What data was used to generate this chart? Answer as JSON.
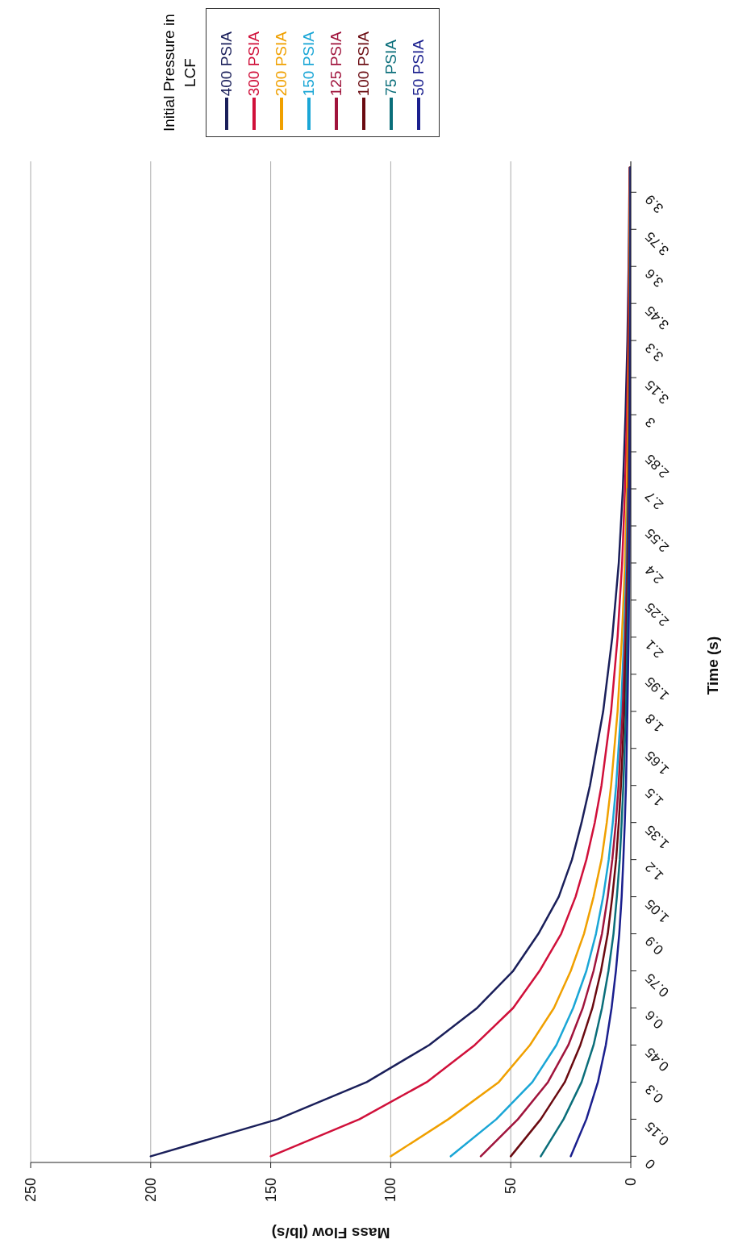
{
  "chart_data": {
    "type": "line",
    "xlabel": "Mass Flow (lb/s)",
    "ylabel": "Time (s)",
    "legend_title": "Initial Pressure in LCF",
    "series": [
      {
        "name": "400 PSIA",
        "color": "#1a1f5a",
        "x": [
          200,
          147,
          110,
          84,
          64,
          49,
          38.5,
          30,
          24.5,
          20.5,
          17,
          11.5,
          7.7,
          5,
          3.3,
          2.2,
          1.4,
          0.9,
          0.5
        ],
        "values": [
          0,
          0.15,
          0.3,
          0.45,
          0.6,
          0.75,
          0.9,
          1.05,
          1.2,
          1.35,
          1.5,
          1.8,
          2.1,
          2.4,
          2.7,
          3,
          3.3,
          3.6,
          4
        ]
      },
      {
        "name": "300 PSIA",
        "color": "#d0103a",
        "x": [
          150,
          113,
          85,
          65,
          49,
          38,
          29,
          23,
          18.5,
          15,
          12.2,
          8.2,
          5.5,
          3.6,
          2.4,
          1.6,
          1,
          0.7,
          0.4
        ],
        "values": [
          0,
          0.15,
          0.3,
          0.45,
          0.6,
          0.75,
          0.9,
          1.05,
          1.2,
          1.35,
          1.5,
          1.8,
          2.1,
          2.4,
          2.7,
          3,
          3.3,
          3.6,
          4
        ]
      },
      {
        "name": "200 PSIA",
        "color": "#f0a000",
        "x": [
          100,
          76,
          55,
          42,
          32,
          25,
          19.5,
          15.5,
          12.2,
          10,
          8.2,
          5.5,
          3.7,
          2.4,
          1.6,
          1.1,
          0.7,
          0.5,
          0.3
        ],
        "values": [
          0,
          0.15,
          0.3,
          0.45,
          0.6,
          0.75,
          0.9,
          1.05,
          1.2,
          1.35,
          1.5,
          1.8,
          2.1,
          2.4,
          2.7,
          3,
          3.3,
          3.6,
          4
        ]
      },
      {
        "name": "150 PSIA",
        "color": "#1aa6d6",
        "x": [
          75,
          56,
          41,
          31,
          24,
          18.5,
          14.5,
          11.5,
          9.2,
          7.5,
          6.1,
          4.1,
          2.8,
          1.8,
          1.2,
          null,
          null,
          null,
          null
        ],
        "values": [
          0,
          0.15,
          0.3,
          0.45,
          0.6,
          0.75,
          0.9,
          1.05,
          1.2,
          1.35,
          1.5,
          1.8,
          2.1,
          2.4,
          2.7,
          null,
          null,
          null,
          null
        ]
      },
      {
        "name": "125 PSIA",
        "color": "#a0143c",
        "x": [
          62.5,
          47,
          34.5,
          26,
          20,
          15.5,
          12,
          9.6,
          7.7,
          6.2,
          5.1,
          3.4,
          2.3,
          1.5,
          1,
          0.7,
          0.5,
          0.3,
          0.2
        ],
        "values": [
          0,
          0.15,
          0.3,
          0.45,
          0.6,
          0.75,
          0.9,
          1.05,
          1.2,
          1.35,
          1.5,
          1.8,
          2.1,
          2.4,
          2.7,
          3,
          3.3,
          3.6,
          4
        ]
      },
      {
        "name": "100 PSIA",
        "color": "#6a0a10",
        "x": [
          50,
          37.5,
          27.5,
          21,
          16,
          12.4,
          9.6,
          7.7,
          6.1,
          5,
          4.1,
          2.7,
          1.8,
          1.2,
          0.8,
          0.6,
          0.4,
          0.3,
          0.1
        ],
        "values": [
          0,
          0.15,
          0.3,
          0.45,
          0.6,
          0.75,
          0.9,
          1.05,
          1.2,
          1.35,
          1.5,
          1.8,
          2.1,
          2.4,
          2.7,
          3,
          3.3,
          3.6,
          4
        ]
      },
      {
        "name": "75 PSIA",
        "color": "#0a6e7a",
        "x": [
          37.5,
          28,
          20.5,
          15.5,
          12,
          9.3,
          7.2,
          5.8,
          4.6,
          3.8,
          3.1,
          2,
          1.4,
          0.9,
          0.6,
          0.4,
          0.3,
          0.2,
          0.1
        ],
        "values": [
          0,
          0.15,
          0.3,
          0.45,
          0.6,
          0.75,
          0.9,
          1.05,
          1.2,
          1.35,
          1.5,
          1.8,
          2.1,
          2.4,
          2.7,
          3,
          3.3,
          3.6,
          4
        ]
      },
      {
        "name": "50 PSIA",
        "color": "#1a1f8e",
        "x": [
          25,
          18.5,
          13.7,
          10.4,
          8,
          6.2,
          4.8,
          3.8,
          3.1,
          2.5,
          2,
          1.4,
          0.9,
          0.6,
          0.4,
          0.3,
          0.2,
          0.1,
          0.1
        ],
        "values": [
          0,
          0.15,
          0.3,
          0.45,
          0.6,
          0.75,
          0.9,
          1.05,
          1.2,
          1.35,
          1.5,
          1.8,
          2.1,
          2.4,
          2.7,
          3,
          3.3,
          3.6,
          4
        ]
      }
    ],
    "xlim": [
      250,
      0
    ],
    "xticks": [
      0,
      50,
      100,
      150,
      200,
      250
    ],
    "ylim": [
      -0.025,
      4.025
    ],
    "yticks": [
      0,
      0.15,
      0.3,
      0.45,
      0.6,
      0.75,
      0.9,
      1.05,
      1.2,
      1.35,
      1.5,
      1.65,
      1.8,
      1.95,
      2.1,
      2.25,
      2.4,
      2.55,
      2.7,
      2.85,
      3,
      3.15,
      3.3,
      3.45,
      3.6,
      3.75,
      3.9
    ],
    "grid": "x",
    "legend": "top right",
    "marker": "none",
    "line_style": "solid"
  }
}
